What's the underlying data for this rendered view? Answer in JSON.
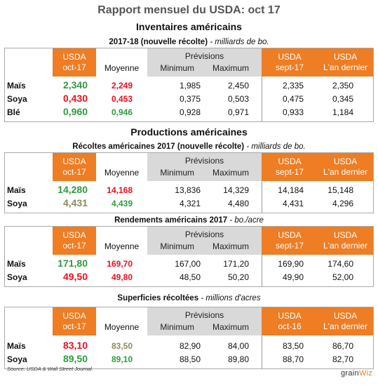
{
  "title": "Rapport mensuel du USDA: oct 17",
  "s1": {
    "heading": "Inventaires américains",
    "sub_bold": "2017-18 (nouvelle récolte)",
    "sub_italic": " - milliards de bo.",
    "hdr": {
      "usda1": "USDA",
      "usda2": "oct-17",
      "moy": "Moyenne",
      "prev": "Prévisions",
      "min": "Minimum",
      "max": "Maximum",
      "s1": "USDA",
      "s2": "sept-17",
      "l1": "USDA",
      "l2": "L'an dernier"
    },
    "rows": [
      {
        "label": "Maïs",
        "usda": "2,340",
        "moy": "2,249",
        "min": "1,985",
        "max": "2,450",
        "sept": "2,335",
        "ad": "2,350"
      },
      {
        "label": "Soya",
        "usda": "0,430",
        "moy": "0,453",
        "min": "0,375",
        "max": "0,503",
        "sept": "0,475",
        "ad": "0,345"
      },
      {
        "label": "Blé",
        "usda": "0,960",
        "moy": "0,946",
        "min": "0,928",
        "max": "0,971",
        "sept": "0,933",
        "ad": "1,184"
      }
    ]
  },
  "productions_heading": "Productions américaines",
  "s2": {
    "sub_bold": "Récoltes américaines 2017 (nouvelle récolte)",
    "sub_italic": " - milliards de bo.",
    "hdr": {
      "usda1": "USDA",
      "usda2": "oct-17",
      "moy": "Moyenne",
      "prev": "Prévisions",
      "min": "Minimum",
      "max": "Maximum",
      "s1": "USDA",
      "s2": "sept-17",
      "l1": "USDA",
      "l2": "L'an dernier"
    },
    "rows": [
      {
        "label": "Maïs",
        "usda": "14,280",
        "moy": "14,168",
        "min": "13,836",
        "max": "14,329",
        "sept": "14,184",
        "ad": "15,148"
      },
      {
        "label": "Soya",
        "usda": "4,431",
        "moy": "4,439",
        "min": "4,321",
        "max": "4,480",
        "sept": "4,431",
        "ad": "4,296"
      }
    ]
  },
  "s3": {
    "sub_bold": "Rendements américains 2017",
    "sub_italic": " - bo./acre",
    "hdr": {
      "usda1": "USDA",
      "usda2": "oct-17",
      "moy": "Moyenne",
      "prev": "Prévisions",
      "min": "Minimum",
      "max": "Maximum",
      "s1": "USDA",
      "s2": "sept-17",
      "l1": "USDA",
      "l2": "L'an dernier"
    },
    "rows": [
      {
        "label": "Maïs",
        "usda": "171,80",
        "moy": "169,70",
        "min": "167,00",
        "max": "171,20",
        "sept": "169,90",
        "ad": "174,60"
      },
      {
        "label": "Soya",
        "usda": "49,50",
        "moy": "49,80",
        "min": "48,50",
        "max": "50,20",
        "sept": "49,90",
        "ad": "52,00"
      }
    ]
  },
  "s4": {
    "sub_bold": "Superficies récoltées",
    "sub_italic": " - millions d'acres",
    "hdr": {
      "usda1": "USDA",
      "usda2": "oct-17",
      "moy": "Moyenne",
      "prev": "Prévisions",
      "min": "Minimum",
      "max": "Maximum",
      "s1": "USDA",
      "s2": "oct-16",
      "l1": "USDA",
      "l2": "L'an dernier"
    },
    "rows": [
      {
        "label": "Maïs",
        "usda": "83,10",
        "moy": "83,50",
        "min": "82,90",
        "max": "84,00",
        "sept": "83,50",
        "ad": "86,70"
      },
      {
        "label": "Soya",
        "usda": "89,50",
        "moy": "89,10",
        "min": "88,50",
        "max": "89,80",
        "sept": "88,70",
        "ad": "82,70"
      }
    ]
  },
  "source": "Source: USDA & Wall Street Journal",
  "logo_a": "grain",
  "logo_b": "Wiz",
  "colors": {
    "header_orange": "#ee7d23",
    "header_gray": "#d9d9d9",
    "green": "#2e9b3e",
    "red": "#e8101e",
    "olive": "#8c8a5a"
  }
}
